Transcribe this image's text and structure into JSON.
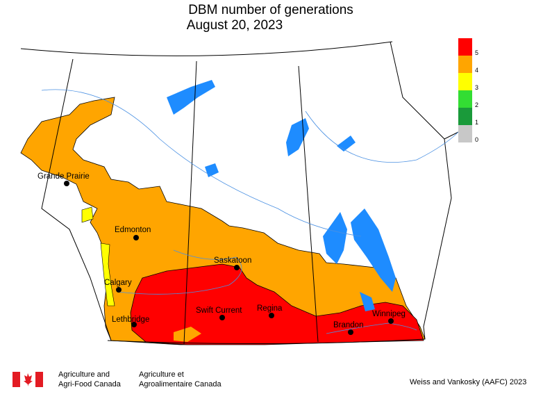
{
  "title": "DBM number of generations",
  "subtitle": "August 20, 2023",
  "legend": [
    {
      "label": "5",
      "color": "#ff0000"
    },
    {
      "label": "4",
      "color": "#ffa500"
    },
    {
      "label": "3",
      "color": "#ffff00"
    },
    {
      "label": "2",
      "color": "#33dd33"
    },
    {
      "label": "1",
      "color": "#1a9a3a"
    },
    {
      "label": "0",
      "color": "#c8c8c8"
    }
  ],
  "cities": [
    "Grande Prairie",
    "Edmonton",
    "Saskatoon",
    "Calgary",
    "Swift Current",
    "Regina",
    "Lethbridge",
    "Winnipeg",
    "Brandon"
  ],
  "footer": {
    "agency_en_1": "Agriculture and",
    "agency_en_2": "Agri-Food Canada",
    "agency_fr_1": "Agriculture et",
    "agency_fr_2": "Agroalimentaire Canada",
    "credit": "Weiss and Vankosky (AAFC) 2023"
  }
}
